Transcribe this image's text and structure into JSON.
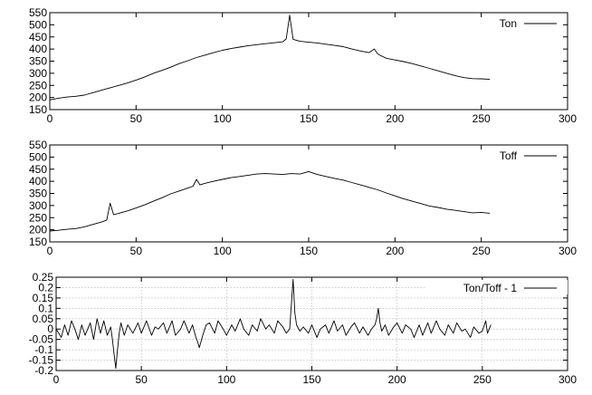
{
  "chart_data": [
    {
      "type": "line",
      "title": "",
      "xlabel": "",
      "ylabel": "",
      "xlim": [
        0,
        300
      ],
      "ylim": [
        150,
        550
      ],
      "xticks": [
        0,
        50,
        100,
        150,
        200,
        250,
        300
      ],
      "yticks": [
        150,
        200,
        250,
        300,
        350,
        400,
        450,
        500,
        550
      ],
      "grid": false,
      "legend_position": "top-right",
      "series": [
        {
          "name": "Ton",
          "x": [
            0,
            5,
            10,
            15,
            20,
            25,
            30,
            35,
            40,
            45,
            50,
            55,
            60,
            65,
            70,
            75,
            80,
            85,
            90,
            95,
            100,
            105,
            110,
            115,
            120,
            125,
            130,
            135,
            137,
            139,
            141,
            145,
            150,
            155,
            160,
            165,
            170,
            175,
            180,
            185,
            188,
            190,
            192,
            195,
            200,
            205,
            210,
            215,
            220,
            225,
            230,
            235,
            240,
            245,
            250,
            255
          ],
          "values": [
            190,
            197,
            202,
            205,
            210,
            220,
            230,
            240,
            250,
            260,
            272,
            285,
            300,
            312,
            325,
            340,
            352,
            365,
            375,
            385,
            395,
            402,
            408,
            414,
            418,
            422,
            426,
            430,
            442,
            540,
            440,
            432,
            428,
            425,
            420,
            415,
            410,
            400,
            392,
            385,
            400,
            380,
            372,
            362,
            355,
            348,
            340,
            330,
            320,
            310,
            300,
            290,
            282,
            278,
            277,
            275
          ]
        },
        {
          "name": "Toff",
          "x": [
            0,
            5,
            10,
            15,
            20,
            25,
            30,
            33,
            35,
            37,
            40,
            45,
            50,
            55,
            60,
            65,
            70,
            75,
            80,
            83,
            85,
            87,
            90,
            95,
            100,
            105,
            110,
            115,
            120,
            125,
            130,
            135,
            140,
            145,
            150,
            155,
            160,
            165,
            170,
            175,
            180,
            185,
            190,
            195,
            200,
            205,
            210,
            215,
            220,
            225,
            230,
            235,
            240,
            245,
            250,
            255
          ],
          "values": [
            195,
            198,
            202,
            205,
            212,
            222,
            232,
            240,
            310,
            262,
            268,
            278,
            290,
            303,
            318,
            332,
            348,
            360,
            372,
            380,
            408,
            385,
            392,
            400,
            408,
            415,
            420,
            425,
            430,
            432,
            430,
            428,
            432,
            430,
            440,
            428,
            420,
            412,
            405,
            395,
            385,
            375,
            365,
            352,
            340,
            328,
            318,
            308,
            298,
            292,
            285,
            280,
            275,
            270,
            272,
            268
          ]
        }
      ]
    },
    {
      "type": "line",
      "title": "",
      "xlabel": "",
      "ylabel": "",
      "xlim": [
        0,
        300
      ],
      "ylim": [
        -0.2,
        0.25
      ],
      "xticks": [
        0,
        50,
        100,
        150,
        200,
        250,
        300
      ],
      "yticks": [
        -0.2,
        -0.15,
        -0.1,
        -0.05,
        0,
        0.05,
        0.1,
        0.15,
        0.2,
        0.25
      ],
      "grid": true,
      "legend_position": "top-right",
      "series": [
        {
          "name": "Ton/Toff - 1",
          "x": [
            0,
            3,
            5,
            7,
            9,
            11,
            13,
            15,
            17,
            20,
            22,
            24,
            26,
            28,
            30,
            32,
            33,
            34,
            35,
            36,
            37,
            38,
            40,
            42,
            45,
            48,
            50,
            53,
            56,
            58,
            60,
            63,
            65,
            68,
            70,
            73,
            75,
            78,
            80,
            82,
            83,
            84,
            86,
            88,
            90,
            93,
            95,
            98,
            100,
            103,
            105,
            108,
            110,
            113,
            115,
            118,
            120,
            123,
            125,
            128,
            130,
            133,
            135,
            137,
            138,
            139,
            140,
            141,
            143,
            145,
            148,
            150,
            153,
            155,
            158,
            160,
            163,
            165,
            168,
            170,
            173,
            175,
            178,
            180,
            183,
            185,
            187,
            188,
            189,
            190,
            191,
            193,
            195,
            198,
            200,
            203,
            205,
            208,
            210,
            213,
            215,
            218,
            220,
            223,
            225,
            228,
            230,
            233,
            235,
            238,
            240,
            243,
            245,
            248,
            250,
            252,
            253,
            255
          ],
          "values": [
            0.0,
            -0.04,
            0.02,
            -0.03,
            0.04,
            0.0,
            -0.05,
            0.02,
            -0.03,
            0.03,
            -0.05,
            0.05,
            -0.02,
            0.04,
            -0.03,
            0.01,
            -0.05,
            -0.12,
            -0.19,
            -0.1,
            -0.02,
            0.03,
            -0.03,
            0.02,
            -0.02,
            0.03,
            -0.02,
            0.04,
            -0.03,
            0.01,
            0.0,
            0.03,
            -0.02,
            0.04,
            -0.03,
            0.0,
            0.04,
            -0.02,
            0.02,
            -0.04,
            -0.06,
            -0.09,
            -0.03,
            0.02,
            0.03,
            -0.02,
            0.04,
            0.0,
            -0.03,
            0.02,
            -0.01,
            0.05,
            0.0,
            -0.03,
            0.02,
            -0.01,
            0.05,
            0.0,
            0.02,
            -0.02,
            0.04,
            0.01,
            -0.02,
            0.0,
            0.12,
            0.24,
            0.08,
            0.02,
            -0.01,
            0.01,
            -0.02,
            0.02,
            -0.04,
            0.0,
            0.02,
            -0.02,
            0.04,
            -0.01,
            0.02,
            -0.03,
            0.01,
            0.03,
            -0.02,
            0.01,
            -0.03,
            0.0,
            0.02,
            0.05,
            0.1,
            0.03,
            -0.01,
            0.02,
            -0.03,
            0.01,
            0.03,
            -0.02,
            0.02,
            0.0,
            -0.04,
            0.02,
            -0.03,
            0.03,
            -0.02,
            0.04,
            0.0,
            -0.03,
            0.02,
            -0.02,
            0.03,
            -0.01,
            0.0,
            -0.04,
            0.01,
            -0.02,
            -0.01,
            0.04,
            -0.02,
            0.02
          ]
        }
      ]
    }
  ]
}
